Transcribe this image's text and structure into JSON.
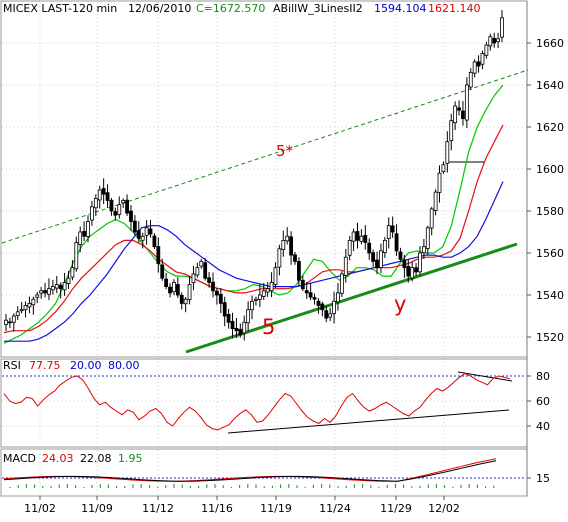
{
  "header": {
    "symbol": "MICEX LAST-120 min",
    "date": "12/06/2010",
    "close": "C=1672.570",
    "indicator": "ABillW_3LinesII2",
    "val_blue": "1594.104",
    "val_red": "1621.140"
  },
  "rsi_header": {
    "name": "RSI",
    "value": "77.75",
    "lower": "20.00",
    "upper": "80.00"
  },
  "macd_header": {
    "name": "MACD",
    "macd": "24.03",
    "signal": "22.08",
    "hist": "1.95"
  },
  "annotations": {
    "top_line": "5*",
    "support_line": "5",
    "wave": "y"
  },
  "colors": {
    "up": "#1a6b1a",
    "green": "#00c000",
    "red": "#e00000",
    "blue": "#0000d0",
    "annotation": "#e00000",
    "trend": "#1a8a1a",
    "ma_green": "#00c800",
    "ma_red": "#e01010",
    "ma_blue": "#1010e0"
  },
  "chart_data": [
    {
      "type": "candlestick",
      "title": "MICEX LAST-120 min",
      "x_tick_labels": [
        "11/02",
        "11/09",
        "11/12",
        "11/16",
        "11/19",
        "11/24",
        "11/29",
        "12/02"
      ],
      "y_tick_labels": [
        "1520",
        "1540",
        "1560",
        "1580",
        "1600",
        "1620",
        "1640",
        "1660"
      ],
      "ylim": [
        1510,
        1676
      ],
      "last_close": 1672.57,
      "ohlc_closes_approx": [
        1528,
        1527,
        1530,
        1532,
        1533,
        1535,
        1536,
        1538,
        1540,
        1542,
        1541,
        1543,
        1544,
        1545,
        1543,
        1546,
        1548,
        1553,
        1565,
        1570,
        1568,
        1575,
        1582,
        1586,
        1590,
        1588,
        1585,
        1580,
        1578,
        1583,
        1585,
        1579,
        1575,
        1570,
        1567,
        1568,
        1572,
        1569,
        1563,
        1555,
        1548,
        1544,
        1541,
        1546,
        1540,
        1536,
        1538,
        1545,
        1550,
        1553,
        1556,
        1548,
        1546,
        1542,
        1540,
        1536,
        1530,
        1527,
        1524,
        1523,
        1521,
        1527,
        1533,
        1537,
        1538,
        1540,
        1542,
        1543,
        1546,
        1553,
        1562,
        1566,
        1568,
        1559,
        1556,
        1547,
        1543,
        1541,
        1539,
        1538,
        1535,
        1533,
        1529,
        1531,
        1537,
        1541,
        1550,
        1558,
        1566,
        1570,
        1566,
        1568,
        1565,
        1560,
        1556,
        1553,
        1561,
        1566,
        1573,
        1570,
        1561,
        1557,
        1553,
        1549,
        1553,
        1551,
        1560,
        1563,
        1572,
        1581,
        1589,
        1598,
        1602,
        1613,
        1623,
        1630,
        1628,
        1624,
        1640,
        1646,
        1651,
        1649,
        1655,
        1659,
        1663,
        1660,
        1662,
        1672
      ],
      "series": [
        {
          "name": "",
          "values": [
            1517,
            1519,
            1521,
            1524,
            1527,
            1531,
            1536,
            1545,
            1555,
            1563,
            1568,
            1571,
            1574,
            1576,
            1574,
            1570,
            1565,
            1560,
            1555,
            1551,
            1549,
            1549,
            1548,
            1546,
            1544,
            1543,
            1542,
            1542,
            1543,
            1545,
            1544,
            1542,
            1540,
            1541,
            1545,
            1551,
            1557,
            1556,
            1551,
            1547,
            1549,
            1553,
            1553,
            1552,
            1549,
            1549,
            1555,
            1560,
            1561,
            1560,
            1560,
            1563,
            1573,
            1590,
            1608,
            1620,
            1628,
            1635,
            1640
          ]
        },
        {
          "name": "",
          "values": [
            1522,
            1523,
            1523,
            1523,
            1525,
            1528,
            1532,
            1537,
            1543,
            1548,
            1552,
            1556,
            1560,
            1564,
            1566,
            1566,
            1564,
            1561,
            1557,
            1554,
            1551,
            1550,
            1548,
            1546,
            1544,
            1543,
            1542,
            1541,
            1541,
            1542,
            1543,
            1543,
            1543,
            1543,
            1544,
            1545,
            1548,
            1551,
            1552,
            1552,
            1551,
            1551,
            1552,
            1553,
            1553,
            1553,
            1554,
            1555,
            1557,
            1558,
            1558,
            1559,
            1561,
            1567,
            1580,
            1594,
            1605,
            1613,
            1621
          ]
        },
        {
          "name": "",
          "values": [
            1518,
            1518,
            1518,
            1518,
            1519,
            1521,
            1524,
            1527,
            1531,
            1536,
            1540,
            1545,
            1550,
            1556,
            1562,
            1567,
            1572,
            1573,
            1573,
            1571,
            1568,
            1564,
            1561,
            1558,
            1555,
            1552,
            1550,
            1548,
            1547,
            1546,
            1545,
            1544,
            1544,
            1544,
            1544,
            1545,
            1546,
            1547,
            1548,
            1549,
            1550,
            1551,
            1552,
            1553,
            1554,
            1555,
            1556,
            1557,
            1558,
            1559,
            1559,
            1558,
            1558,
            1560,
            1563,
            1568,
            1576,
            1585,
            1594
          ]
        }
      ],
      "trendlines": [
        "support (5)",
        "upper channel (5*)"
      ]
    },
    {
      "type": "line",
      "title": "RSI",
      "y_tick_labels": [
        "40",
        "60",
        "80"
      ],
      "ylim": [
        25,
        88
      ],
      "reference_levels": [
        20,
        80
      ],
      "value": 77.75,
      "values_approx": [
        66,
        60,
        58,
        59,
        63,
        62,
        56,
        61,
        65,
        68,
        73,
        76,
        79,
        80,
        77,
        70,
        62,
        57,
        59,
        55,
        52,
        49,
        53,
        51,
        45,
        48,
        52,
        54,
        50,
        43,
        40,
        46,
        51,
        55,
        52,
        47,
        41,
        38,
        37,
        39,
        41,
        46,
        50,
        53,
        49,
        43,
        44,
        49,
        55,
        61,
        66,
        64,
        58,
        52,
        47,
        44,
        42,
        46,
        43,
        48,
        56,
        63,
        66,
        60,
        55,
        52,
        54,
        57,
        59,
        56,
        53,
        50,
        48,
        52,
        55,
        61,
        66,
        70,
        68,
        71,
        75,
        79,
        82,
        80,
        77,
        75,
        73,
        78,
        80,
        79,
        77.75
      ]
    },
    {
      "type": "line",
      "title": "MACD",
      "y_tick_labels": [
        "15"
      ],
      "ylim": [
        -12,
        25
      ],
      "values": [
        24.03,
        22.08,
        1.95
      ]
    }
  ]
}
